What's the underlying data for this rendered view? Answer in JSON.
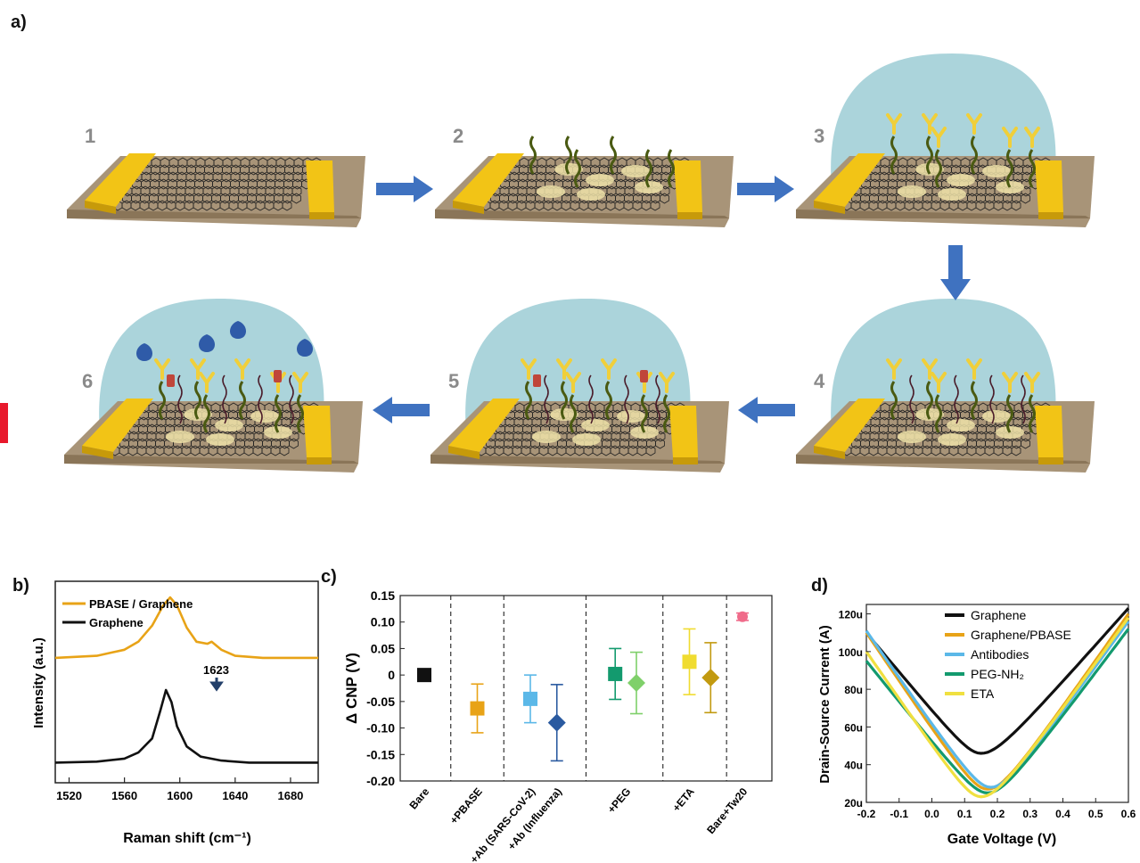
{
  "panels": {
    "a": "a)",
    "b": "b)",
    "c": "c)",
    "d": "d)"
  },
  "schematic": {
    "steps": [
      "1",
      "2",
      "3",
      "4",
      "5",
      "6"
    ],
    "colors": {
      "substrate": "#a89478",
      "gold": "#f2c416",
      "droplet": "#8fc6cf",
      "arrow": "#3f72c0",
      "chain": "#4a5a12",
      "antibody": "#f0cf3a",
      "peg": "#4a1c2a",
      "eta": "#c0463a",
      "antigen": "#2f5ba8"
    }
  },
  "chart_data": [
    {
      "panel": "b",
      "type": "line",
      "xlabel": "Raman shift (cm⁻¹)",
      "ylabel": "Intensity (a.u.)",
      "xticks": [
        "1520",
        "1560",
        "1600",
        "1640",
        "1680"
      ],
      "xlim": [
        1510,
        1700
      ],
      "legend": [
        "PBASE / Graphene",
        "Graphene"
      ],
      "annotation": "1623",
      "series": [
        {
          "name": "PBASE / Graphene",
          "color": "#e8a317",
          "x": [
            1510,
            1540,
            1560,
            1570,
            1580,
            1588,
            1593,
            1598,
            1605,
            1612,
            1620,
            1623,
            1630,
            1640,
            1660,
            1680,
            1700
          ],
          "y": [
            0.62,
            0.63,
            0.66,
            0.7,
            0.78,
            0.88,
            0.92,
            0.88,
            0.77,
            0.7,
            0.69,
            0.7,
            0.66,
            0.63,
            0.62,
            0.62,
            0.62
          ]
        },
        {
          "name": "Graphene",
          "color": "#111111",
          "x": [
            1510,
            1540,
            1560,
            1570,
            1580,
            1586,
            1590,
            1594,
            1598,
            1605,
            1615,
            1630,
            1650,
            1680,
            1700
          ],
          "y": [
            0.1,
            0.105,
            0.12,
            0.15,
            0.22,
            0.36,
            0.46,
            0.4,
            0.28,
            0.18,
            0.13,
            0.11,
            0.1,
            0.1,
            0.1
          ]
        }
      ]
    },
    {
      "panel": "c",
      "type": "scatter",
      "ylabel": "Δ CNP (V)",
      "ylim": [
        -0.2,
        0.15
      ],
      "yticks": [
        "0.15",
        "0.10",
        "0.05",
        "0",
        "-0.05",
        "-0.10",
        "-0.15",
        "-0.20"
      ],
      "categories": [
        "Bare",
        "+PBASE",
        "+Ab (SARS-CoV-2)",
        "+Ab (Influenza)",
        "+PEG",
        "+ETA",
        "Bare+Tw20"
      ],
      "points": [
        {
          "pos": 0,
          "y": 0.0,
          "err": 0.0,
          "shape": "square",
          "color": "#111111"
        },
        {
          "pos": 1,
          "y": -0.063,
          "err": 0.046,
          "shape": "square",
          "color": "#e8a317"
        },
        {
          "pos": 2,
          "y": -0.045,
          "err": 0.045,
          "shape": "square",
          "color": "#5bb8e8"
        },
        {
          "pos": 2.5,
          "y": -0.09,
          "err": 0.072,
          "shape": "diamond",
          "color": "#2a5aa0"
        },
        {
          "pos": 3.6,
          "y": 0.002,
          "err": 0.048,
          "shape": "square",
          "color": "#139a6e"
        },
        {
          "pos": 4.0,
          "y": -0.015,
          "err": 0.058,
          "shape": "diamond",
          "color": "#7fd06a"
        },
        {
          "pos": 5.0,
          "y": 0.025,
          "err": 0.062,
          "shape": "square",
          "color": "#f0dc30"
        },
        {
          "pos": 5.4,
          "y": -0.005,
          "err": 0.066,
          "shape": "diamond",
          "color": "#c29a10"
        },
        {
          "pos": 6.0,
          "y": 0.11,
          "err": 0.007,
          "shape": "circle",
          "color": "#f06b8a"
        }
      ],
      "separators": [
        0.5,
        1.5,
        3.05,
        4.5,
        5.7
      ]
    },
    {
      "panel": "d",
      "type": "line",
      "xlabel": "Gate Voltage (V)",
      "ylabel": "Drain-Source Current (A)",
      "xlim": [
        -0.2,
        0.6
      ],
      "ylim": [
        20,
        125
      ],
      "xticks": [
        "-0.2",
        "-0.1",
        "0.0",
        "0.1",
        "0.2",
        "0.3",
        "0.4",
        "0.5",
        "0.6"
      ],
      "yticks": [
        "20u",
        "40u",
        "60u",
        "80u",
        "100u",
        "120u"
      ],
      "legend": [
        "Graphene",
        "Graphene/PBASE",
        "Antibodies",
        "PEG-NH₂",
        "ETA"
      ],
      "series": [
        {
          "name": "Graphene",
          "color": "#111111",
          "vmin": 0.15,
          "imin": 46,
          "left": 110,
          "right": 123
        },
        {
          "name": "Graphene/PBASE",
          "color": "#e8a317",
          "vmin": 0.17,
          "imin": 27,
          "left": 110,
          "right": 120
        },
        {
          "name": "Antibodies",
          "color": "#5bb8e8",
          "vmin": 0.18,
          "imin": 28,
          "left": 111,
          "right": 116
        },
        {
          "name": "PEG-NH₂",
          "color": "#139a6e",
          "vmin": 0.17,
          "imin": 25,
          "left": 95,
          "right": 112
        },
        {
          "name": "ETA",
          "color": "#f0e040",
          "vmin": 0.15,
          "imin": 23,
          "left": 100,
          "right": 118
        }
      ]
    }
  ]
}
